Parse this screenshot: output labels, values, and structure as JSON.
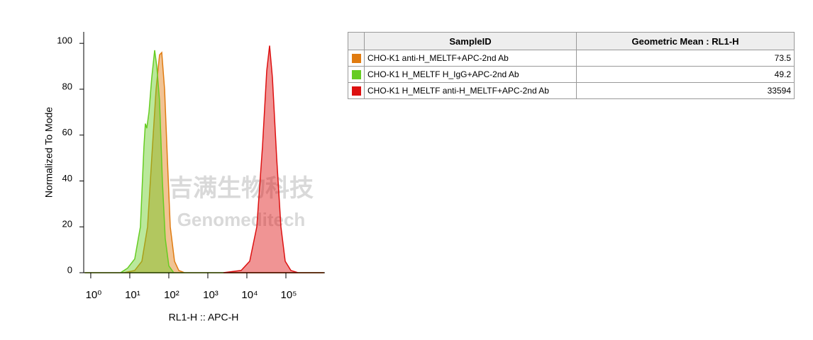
{
  "chart_data": {
    "type": "area",
    "xscale": "log",
    "y_axis_label": "Normalized To Mode",
    "x_axis_label": "RL1-H :: APC-H",
    "xlim": [
      0.66,
      1000000
    ],
    "xticks": [
      {
        "value": 1,
        "label": "10⁰"
      },
      {
        "value": 10,
        "label": "10¹"
      },
      {
        "value": 100,
        "label": "10²"
      },
      {
        "value": 1000,
        "label": "10³"
      },
      {
        "value": 10000,
        "label": "10⁴"
      },
      {
        "value": 100000,
        "label": "10⁵"
      }
    ],
    "ylim": [
      0,
      105
    ],
    "yticks": [
      0,
      20,
      40,
      60,
      80,
      100
    ],
    "table_columns": [
      "SampleID",
      "Geometric Mean : RL1-H"
    ],
    "watermark": {
      "cn": "吉满生物科技",
      "en": "Genomeditech"
    },
    "series": [
      {
        "name": "CHO-K1 anti-H_MELTF+APC-2nd Ab",
        "color": "#e07b10",
        "geometric_mean": 73.5,
        "x": [
          0.7,
          7.15,
          13.4,
          20.4,
          28.5,
          36.6,
          47.1,
          58.0,
          65.8,
          77.8,
          91.9,
          108.8,
          139.8,
          179.7,
          251,
          950000
        ],
        "values": [
          0,
          0,
          1,
          5,
          20,
          50,
          80,
          95,
          96,
          80,
          50,
          20,
          5,
          1,
          0,
          0
        ]
      },
      {
        "name": "CHO-K1 H_MELTF H_IgG+APC-2nd Ab",
        "color": "#66cc22",
        "geometric_mean": 49.2,
        "x": [
          0.7,
          5.8,
          8.82,
          13.4,
          18.7,
          23.1,
          25.1,
          27.3,
          31.0,
          36.6,
          43.3,
          49.1,
          58.0,
          68.6,
          81.1,
          100,
          134,
          950000
        ],
        "values": [
          0,
          0,
          2,
          6,
          20,
          55,
          65,
          63,
          70,
          85,
          97,
          90,
          75,
          40,
          15,
          3,
          0,
          0
        ]
      },
      {
        "name": "CHO-K1 H_MELTF anti-H_MELTF+APC-2nd Ab",
        "color": "#dd1111",
        "geometric_mean": 33594,
        "x": [
          2512,
          7151,
          11823,
          17970,
          25119,
          32290,
          38180,
          45130,
          58010,
          74640,
          95900,
          134000,
          203700,
          950000
        ],
        "values": [
          0,
          1,
          5,
          20,
          55,
          88,
          99,
          85,
          50,
          20,
          5,
          1,
          0,
          0
        ]
      }
    ]
  }
}
